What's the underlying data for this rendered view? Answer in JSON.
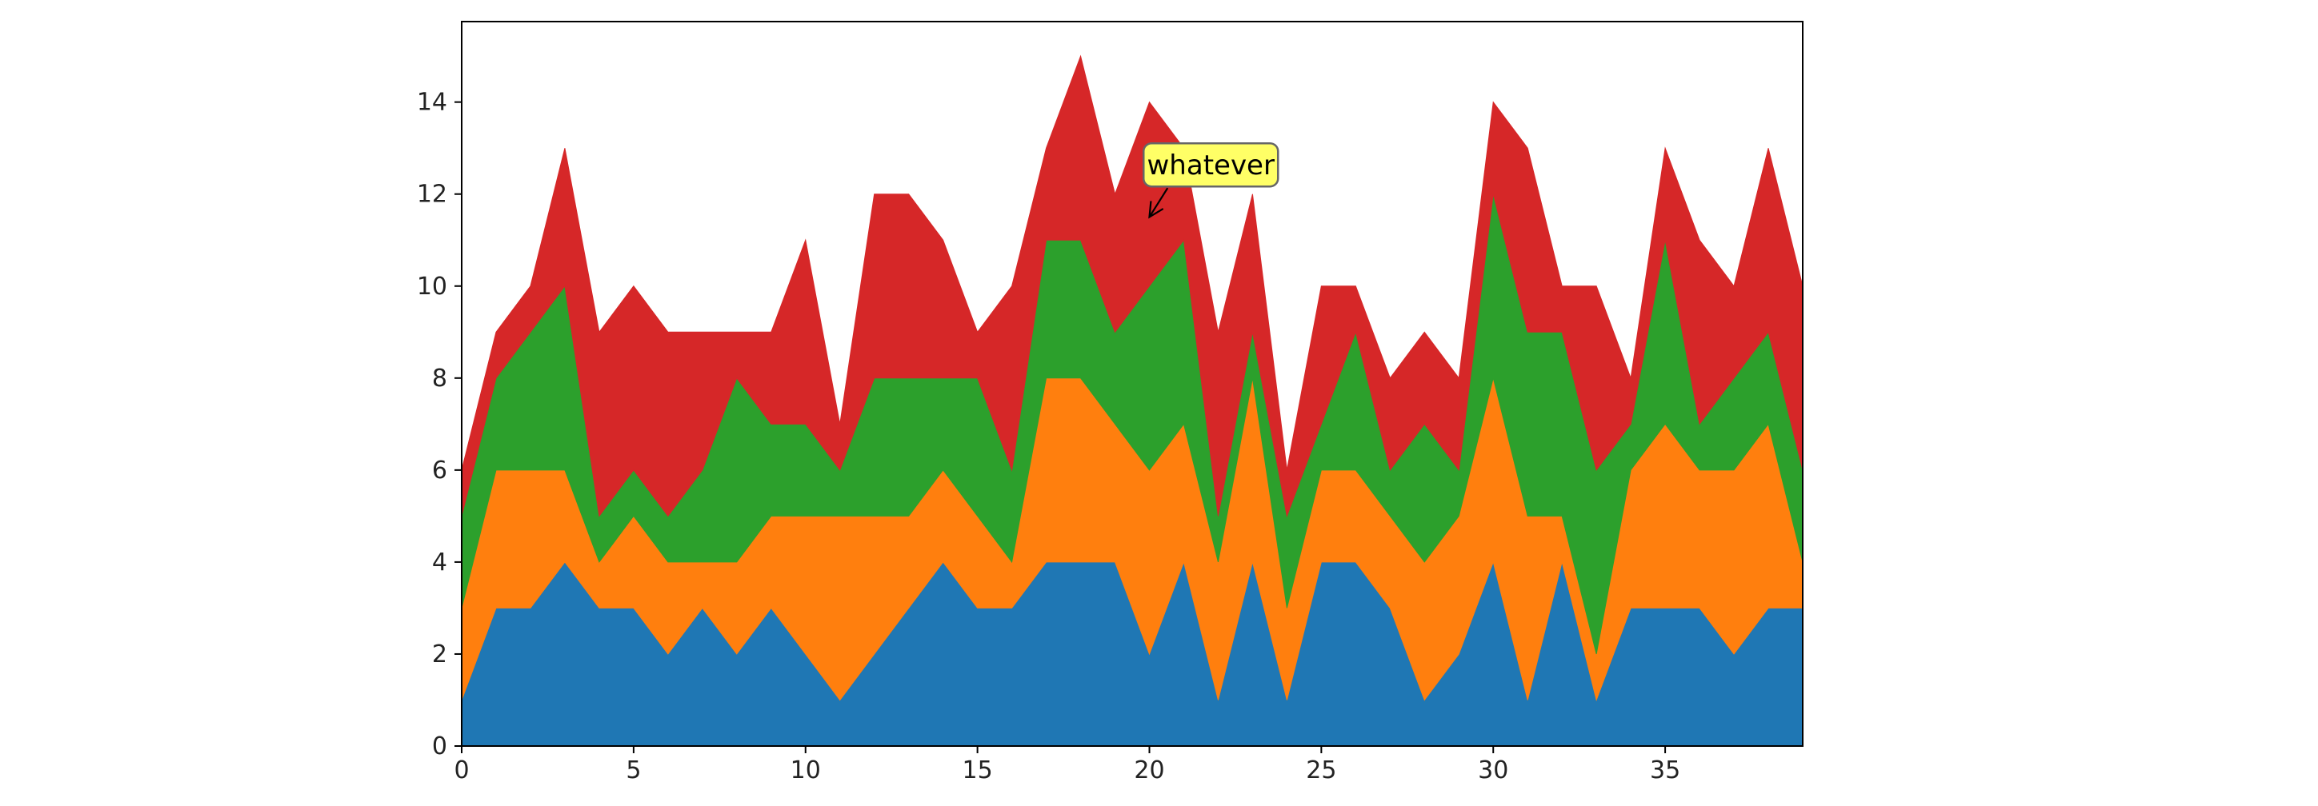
{
  "chart_data": {
    "type": "area",
    "stacked": true,
    "title": "",
    "xlabel": "",
    "ylabel": "",
    "xlim": [
      0,
      39
    ],
    "ylim": [
      0,
      15.75
    ],
    "grid": false,
    "legend": "none",
    "x_ticks": [
      0,
      5,
      10,
      15,
      20,
      25,
      30,
      35
    ],
    "y_ticks": [
      0,
      2,
      4,
      6,
      8,
      10,
      12,
      14
    ],
    "x": [
      0,
      1,
      2,
      3,
      4,
      5,
      6,
      7,
      8,
      9,
      10,
      11,
      12,
      13,
      14,
      15,
      16,
      17,
      18,
      19,
      20,
      21,
      22,
      23,
      24,
      25,
      26,
      27,
      28,
      29,
      30,
      31,
      32,
      33,
      34,
      35,
      36,
      37,
      38,
      39
    ],
    "series": [
      {
        "color": "#1f77b4",
        "values": [
          1,
          3,
          3,
          4,
          3,
          3,
          2,
          3,
          2,
          3,
          2,
          1,
          2,
          3,
          4,
          3,
          3,
          4,
          4,
          4,
          2,
          4,
          1,
          4,
          1,
          4,
          4,
          3,
          1,
          2,
          4,
          1,
          4,
          1,
          3,
          3,
          3,
          2,
          3,
          3
        ]
      },
      {
        "color": "#ff7f0e",
        "values": [
          2,
          3,
          3,
          2,
          1,
          2,
          2,
          1,
          2,
          2,
          3,
          4,
          3,
          2,
          2,
          2,
          1,
          4,
          4,
          3,
          4,
          3,
          3,
          4,
          2,
          2,
          2,
          2,
          3,
          3,
          4,
          4,
          1,
          1,
          3,
          4,
          3,
          4,
          4,
          1
        ]
      },
      {
        "color": "#2ca02c",
        "values": [
          2,
          2,
          3,
          4,
          1,
          1,
          1,
          2,
          4,
          2,
          2,
          1,
          3,
          3,
          2,
          3,
          2,
          3,
          3,
          2,
          4,
          4,
          1,
          1,
          2,
          1,
          3,
          1,
          3,
          1,
          4,
          4,
          4,
          4,
          1,
          4,
          1,
          2,
          2,
          2
        ]
      },
      {
        "color": "#d62728",
        "values": [
          1,
          1,
          1,
          3,
          4,
          4,
          4,
          3,
          1,
          2,
          4,
          1,
          4,
          4,
          3,
          1,
          4,
          2,
          4,
          3,
          4,
          2,
          4,
          3,
          1,
          3,
          1,
          2,
          2,
          2,
          2,
          4,
          1,
          4,
          1,
          2,
          4,
          2,
          4,
          4
        ]
      }
    ],
    "annotation": {
      "text": "whatever",
      "xy": [
        20,
        11.5
      ],
      "xytext": [
        21.6,
        12.6
      ],
      "box_color": "#ffff66",
      "box_edge_color": "#666666"
    }
  }
}
